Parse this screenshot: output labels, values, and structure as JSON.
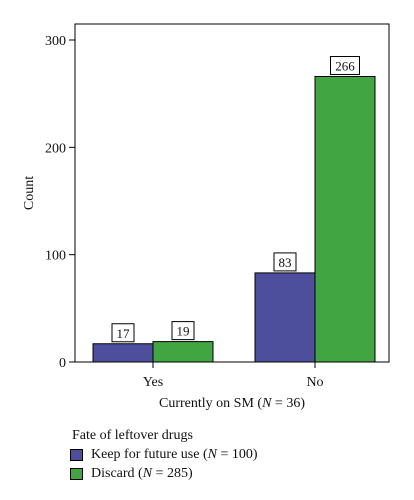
{
  "chart_data": {
    "type": "bar",
    "categories": [
      "Yes",
      "No"
    ],
    "series": [
      {
        "name": "Keep for future use (N = 100)",
        "values": [
          17,
          83
        ],
        "color": "#4e4f9c"
      },
      {
        "name": "Discard (N = 285)",
        "values": [
          19,
          266
        ],
        "color": "#41a541"
      }
    ],
    "xlabel": "Currently on SM (N = 36)",
    "ylabel": "Count",
    "ylim": [
      0,
      300
    ],
    "yticks": [
      0,
      100,
      200,
      300
    ],
    "grid": false,
    "legend": {
      "title": "Fate of leftover drugs",
      "placement": "bottom-left"
    }
  }
}
